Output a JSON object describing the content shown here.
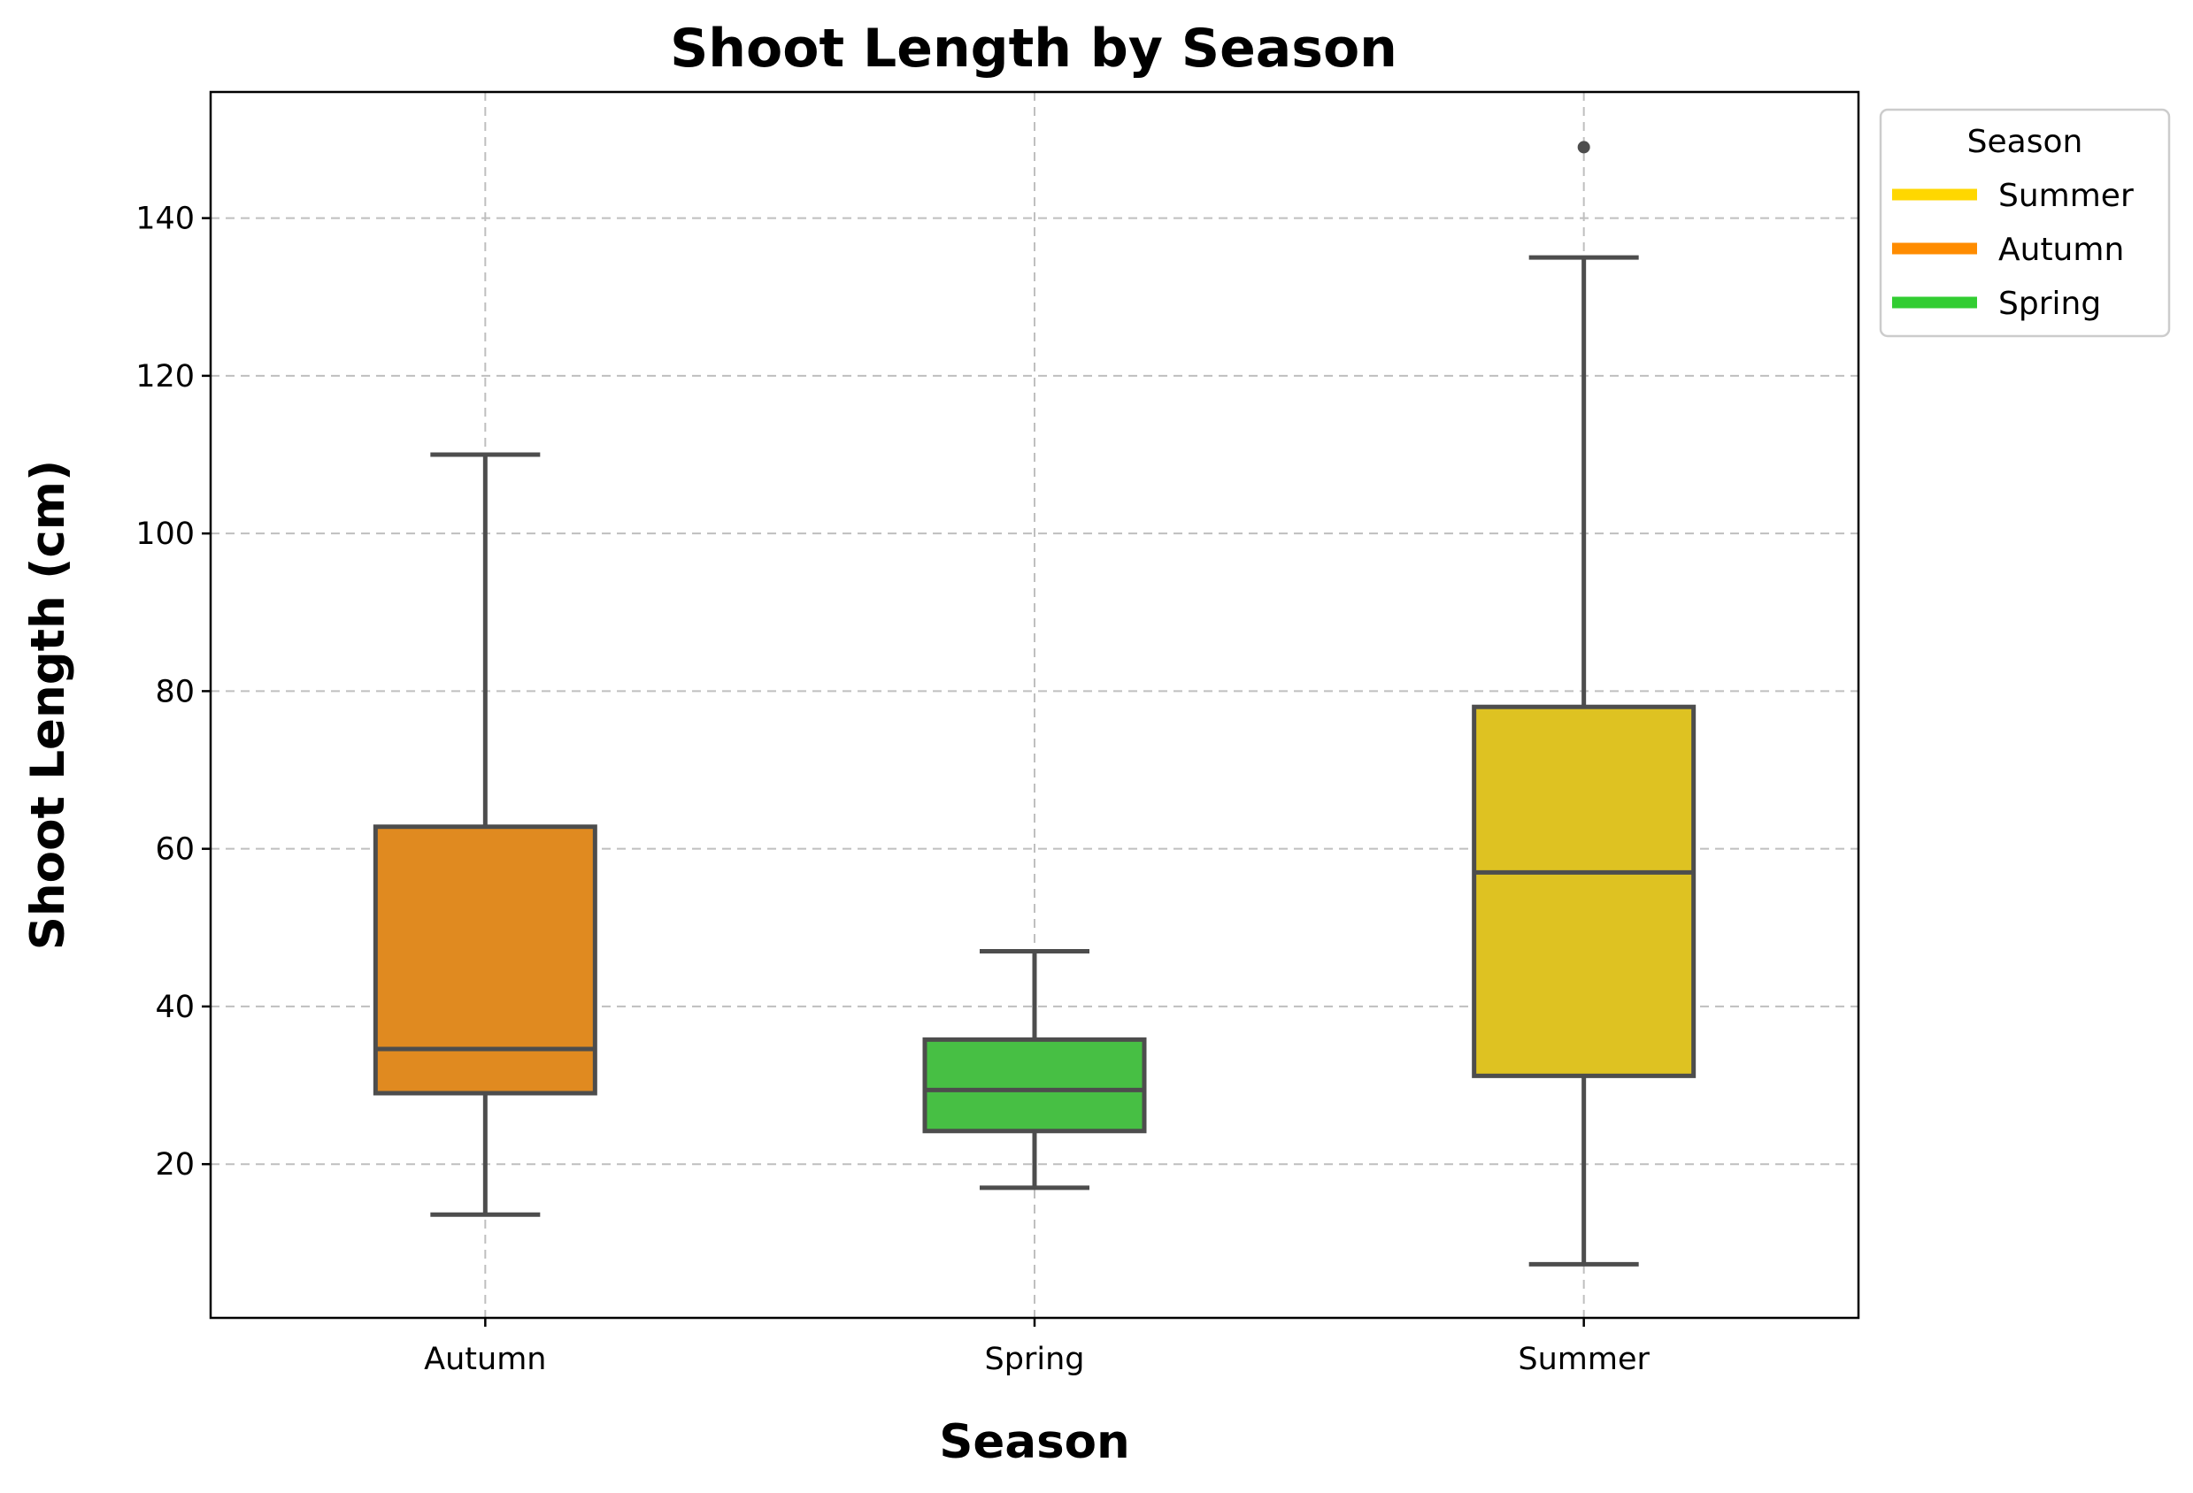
{
  "chart_data": {
    "type": "box",
    "title": "Shoot Length by Season",
    "xlabel": "Season",
    "ylabel": "Shoot Length (cm)",
    "categories": [
      "Autumn",
      "Spring",
      "Summer"
    ],
    "ylim": [
      0.5,
      156
    ],
    "yticks": [
      20,
      40,
      60,
      80,
      100,
      120,
      140
    ],
    "grid": true,
    "boxes": [
      {
        "category": "Autumn",
        "whisker_low": 13.6,
        "q1": 29.0,
        "median": 34.6,
        "q3": 62.8,
        "whisker_high": 110.0,
        "outliers": [],
        "color": "#e08a20"
      },
      {
        "category": "Spring",
        "whisker_low": 17.0,
        "q1": 24.2,
        "median": 29.4,
        "q3": 35.8,
        "whisker_high": 47.0,
        "outliers": [],
        "color": "#47bf44"
      },
      {
        "category": "Summer",
        "whisker_low": 7.3,
        "q1": 31.2,
        "median": 57.0,
        "q3": 78.0,
        "whisker_high": 135.0,
        "outliers": [
          149.0
        ],
        "color": "#dec222"
      }
    ],
    "legend": {
      "title": "Season",
      "placement": "outside-upper-right",
      "entries": [
        {
          "label": "Summer",
          "color": "#ffd700"
        },
        {
          "label": "Autumn",
          "color": "#ff8c00"
        },
        {
          "label": "Spring",
          "color": "#32cd32"
        }
      ]
    }
  }
}
